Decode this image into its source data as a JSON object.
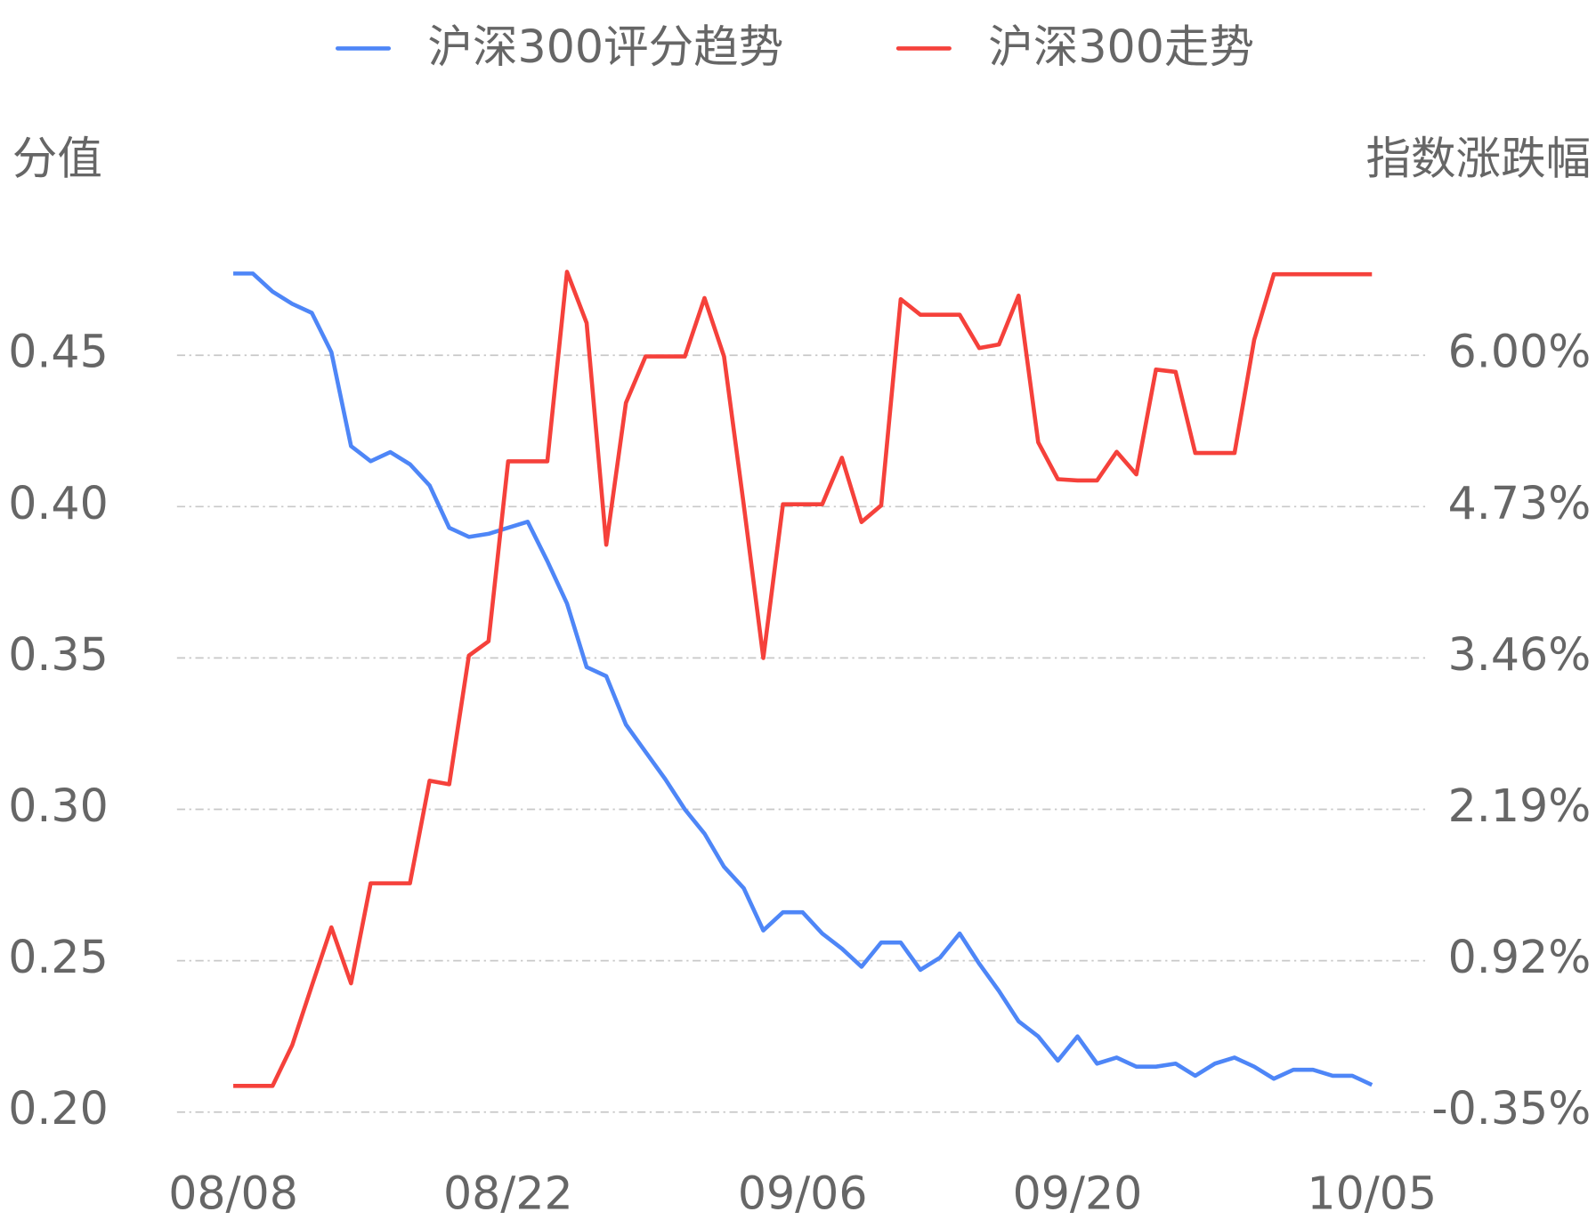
{
  "chart_data": {
    "type": "line",
    "y_label": "分值",
    "y2_label": "指数涨跌幅",
    "categories": [
      "08/08",
      null,
      null,
      null,
      null,
      null,
      null,
      null,
      null,
      null,
      null,
      null,
      null,
      null,
      "08/22",
      null,
      null,
      null,
      null,
      null,
      null,
      null,
      null,
      null,
      null,
      null,
      null,
      null,
      null,
      "09/06",
      null,
      null,
      null,
      null,
      null,
      null,
      null,
      null,
      null,
      null,
      null,
      null,
      null,
      "09/20",
      null,
      null,
      null,
      null,
      null,
      null,
      null,
      null,
      null,
      null,
      null,
      null,
      null,
      null,
      "10/05"
    ],
    "series": [
      {
        "name": "沪深300评分趋势",
        "color": "#4e86f7",
        "axis": "y",
        "values": [
          0.477,
          0.477,
          0.471,
          0.467,
          0.464,
          0.451,
          0.42,
          0.415,
          0.418,
          0.414,
          0.407,
          0.393,
          0.39,
          0.391,
          0.393,
          0.395,
          0.382,
          0.368,
          0.347,
          0.344,
          0.328,
          0.319,
          0.31,
          0.3,
          0.292,
          0.281,
          0.274,
          0.26,
          0.266,
          0.266,
          0.259,
          0.254,
          0.248,
          0.256,
          0.256,
          0.247,
          0.251,
          0.259,
          0.249,
          0.24,
          0.23,
          0.225,
          0.217,
          0.225,
          0.216,
          0.218,
          0.215,
          0.215,
          0.216,
          0.212,
          0.216,
          0.218,
          0.215,
          0.211,
          0.214,
          0.214,
          0.212,
          0.212,
          0.209
        ]
      },
      {
        "name": "沪深300走势",
        "color": "#f5413b",
        "axis": "y2",
        "values": [
          -0.13,
          -0.13,
          -0.13,
          0.21,
          0.71,
          1.2,
          0.73,
          1.57,
          1.57,
          1.57,
          2.43,
          2.4,
          3.48,
          3.6,
          5.11,
          5.11,
          5.11,
          6.7,
          6.27,
          4.41,
          5.6,
          5.99,
          5.99,
          5.99,
          6.48,
          5.99,
          4.75,
          3.46,
          4.75,
          4.75,
          4.75,
          5.14,
          4.6,
          4.74,
          6.47,
          6.34,
          6.34,
          6.34,
          6.06,
          6.09,
          6.5,
          5.27,
          4.96,
          4.95,
          4.95,
          5.19,
          5.0,
          5.88,
          5.86,
          5.18,
          5.18,
          5.18,
          6.13,
          6.68,
          6.68,
          6.68,
          6.68,
          6.68,
          6.68
        ]
      }
    ],
    "ylim": [
      0.2,
      0.5
    ],
    "yticks": [
      {
        "value": 0.2,
        "label": "0.20"
      },
      {
        "value": 0.25,
        "label": "0.25"
      },
      {
        "value": 0.3,
        "label": "0.30"
      },
      {
        "value": 0.35,
        "label": "0.35"
      },
      {
        "value": 0.4,
        "label": "0.40"
      },
      {
        "value": 0.45,
        "label": "0.45"
      }
    ],
    "y2lim": [
      -0.35,
      7.27
    ],
    "y2ticks": [
      {
        "value": -0.35,
        "label": "-0.35%"
      },
      {
        "value": 0.92,
        "label": "0.92%"
      },
      {
        "value": 2.19,
        "label": "2.19%"
      },
      {
        "value": 3.46,
        "label": "3.46%"
      },
      {
        "value": 4.73,
        "label": "4.73%"
      },
      {
        "value": 6.0,
        "label": "6.00%"
      }
    ],
    "grid": true,
    "legend": "top"
  }
}
